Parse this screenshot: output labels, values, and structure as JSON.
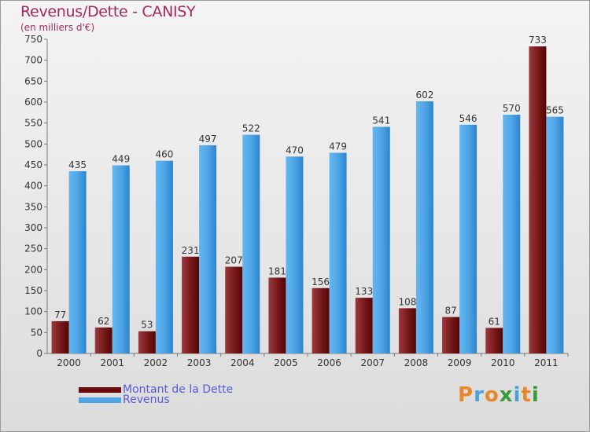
{
  "title": "Revenus/Dette - CANISY",
  "subtitle": "(en milliers d'€)",
  "logo": "Proxiti",
  "colors": {
    "dette": "#7a1a1c",
    "revenus": "#4ea5e6"
  },
  "chart_data": {
    "type": "bar",
    "categories": [
      "2000",
      "2001",
      "2002",
      "2003",
      "2004",
      "2005",
      "2006",
      "2007",
      "2008",
      "2009",
      "2010",
      "2011"
    ],
    "series": [
      {
        "name": "Montant de la Dette",
        "values": [
          77,
          62,
          53,
          231,
          207,
          181,
          156,
          133,
          108,
          87,
          61,
          733
        ]
      },
      {
        "name": "Revenus",
        "values": [
          435,
          449,
          460,
          497,
          522,
          470,
          479,
          541,
          602,
          546,
          570,
          565
        ]
      }
    ],
    "ylim": [
      0,
      750
    ],
    "yticks": [
      0,
      50,
      100,
      150,
      200,
      250,
      300,
      350,
      400,
      450,
      500,
      550,
      600,
      650,
      700,
      750
    ],
    "grid": false,
    "legend_position": "bottom-left"
  }
}
